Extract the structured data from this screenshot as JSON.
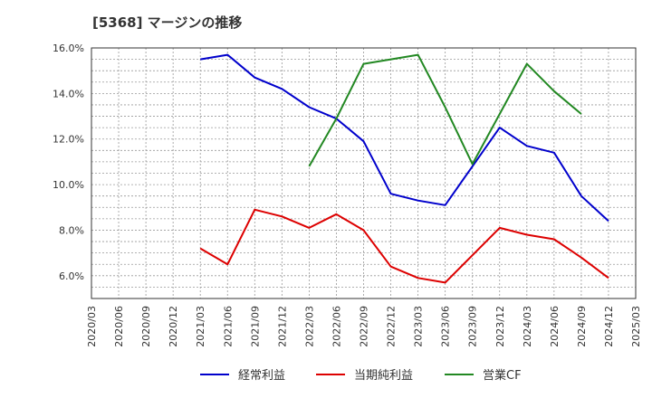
{
  "chart_data": {
    "type": "line",
    "title": "[5368]  マージンの推移",
    "xlabel": "",
    "ylabel": "",
    "ylim": [
      5.0,
      16.0
    ],
    "yticks": [
      6.0,
      8.0,
      10.0,
      12.0,
      14.0,
      16.0
    ],
    "ytick_labels": [
      "6.0%",
      "8.0%",
      "10.0%",
      "12.0%",
      "14.0%",
      "16.0%"
    ],
    "x": [
      "2020/03",
      "2020/06",
      "2020/09",
      "2020/12",
      "2021/03",
      "2021/06",
      "2021/09",
      "2021/12",
      "2022/03",
      "2022/06",
      "2022/09",
      "2022/12",
      "2023/03",
      "2023/06",
      "2023/09",
      "2023/12",
      "2024/03",
      "2024/06",
      "2024/09",
      "2024/12",
      "2025/03"
    ],
    "grid": true,
    "legend_position": "bottom",
    "series": [
      {
        "name": "経常利益",
        "color": "#0000cc",
        "values": [
          null,
          null,
          null,
          null,
          15.5,
          15.7,
          14.7,
          14.2,
          13.4,
          12.9,
          11.9,
          9.6,
          9.3,
          9.1,
          10.8,
          12.5,
          11.7,
          11.4,
          9.5,
          8.4,
          null
        ]
      },
      {
        "name": "当期純利益",
        "color": "#dd0000",
        "values": [
          null,
          null,
          null,
          null,
          7.2,
          6.5,
          8.9,
          8.6,
          8.1,
          8.7,
          8.0,
          6.4,
          5.9,
          5.7,
          6.9,
          8.1,
          7.8,
          7.6,
          6.8,
          5.9,
          null
        ]
      },
      {
        "name": "営業CF",
        "color": "#228822",
        "values": [
          null,
          null,
          null,
          null,
          null,
          null,
          null,
          null,
          10.8,
          12.9,
          15.3,
          15.5,
          15.7,
          13.4,
          10.9,
          13.1,
          15.3,
          14.1,
          13.1,
          null,
          null
        ]
      }
    ]
  }
}
